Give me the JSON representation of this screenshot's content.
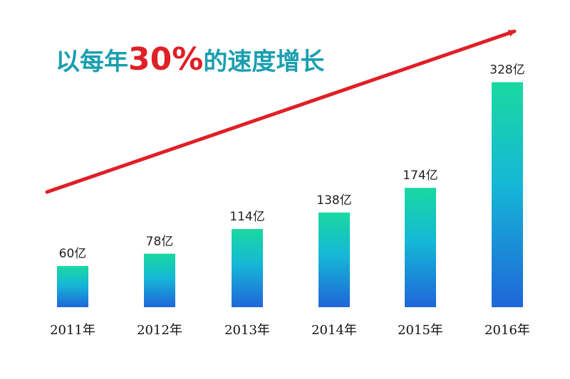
{
  "chart_data": {
    "type": "bar",
    "title": {
      "prefix": "以每年",
      "highlight": "30%",
      "suffix": "的速度增长"
    },
    "categories": [
      "2011年",
      "2012年",
      "2013年",
      "2014年",
      "2015年",
      "2016年"
    ],
    "values": [
      60,
      78,
      114,
      138,
      174,
      328
    ],
    "data_labels": [
      "60亿",
      "78亿",
      "114亿",
      "138亿",
      "174亿",
      "328亿"
    ],
    "xlabel": "",
    "ylabel": "",
    "ylim": [
      0,
      340
    ],
    "grid": false,
    "legend": "none",
    "trend_arrow": true
  },
  "colors": {
    "title_prefix": "#1a9fb0",
    "title_highlight": "#e01f26",
    "title_suffix": "#1a9fb0",
    "bar_top": "#19d9a0",
    "bar_mid": "#15b8d6",
    "bar_bottom": "#1f66d8",
    "arrow": "#e01f26"
  }
}
